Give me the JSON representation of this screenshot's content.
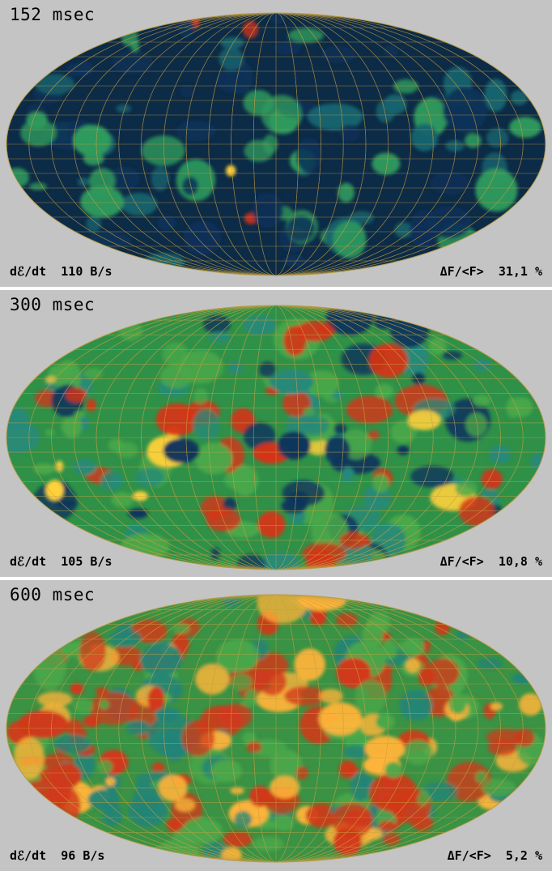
{
  "panels": [
    {
      "time": "152 msec",
      "rate_label": "dℰ/dt",
      "rate_value": "110 B/s",
      "flux_label": "ΔF/<F>",
      "flux_value": "31,1 %",
      "base_color": "#0c2b47",
      "palette": [
        "#0d3158",
        "#18646f",
        "#2f9a5d",
        "#d73316",
        "#ffd23a"
      ]
    },
    {
      "time": "300 msec",
      "rate_label": "dℰ/dt",
      "rate_value": "105 B/s",
      "flux_label": "ΔF/<F>",
      "flux_value": "10,8 %",
      "base_color": "#2f9148",
      "palette": [
        "#10355d",
        "#27897a",
        "#4aa84a",
        "#d73316",
        "#ffd23a"
      ]
    },
    {
      "time": "600 msec",
      "rate_label": "dℰ/dt",
      "rate_value": "96 B/s",
      "flux_label": "ΔF/<F>",
      "flux_value": "5,2 %",
      "base_color": "#3a9244",
      "palette": [
        "#12365f",
        "#238477",
        "#4aa84a",
        "#d2381a",
        "#ffb43a"
      ]
    }
  ]
}
